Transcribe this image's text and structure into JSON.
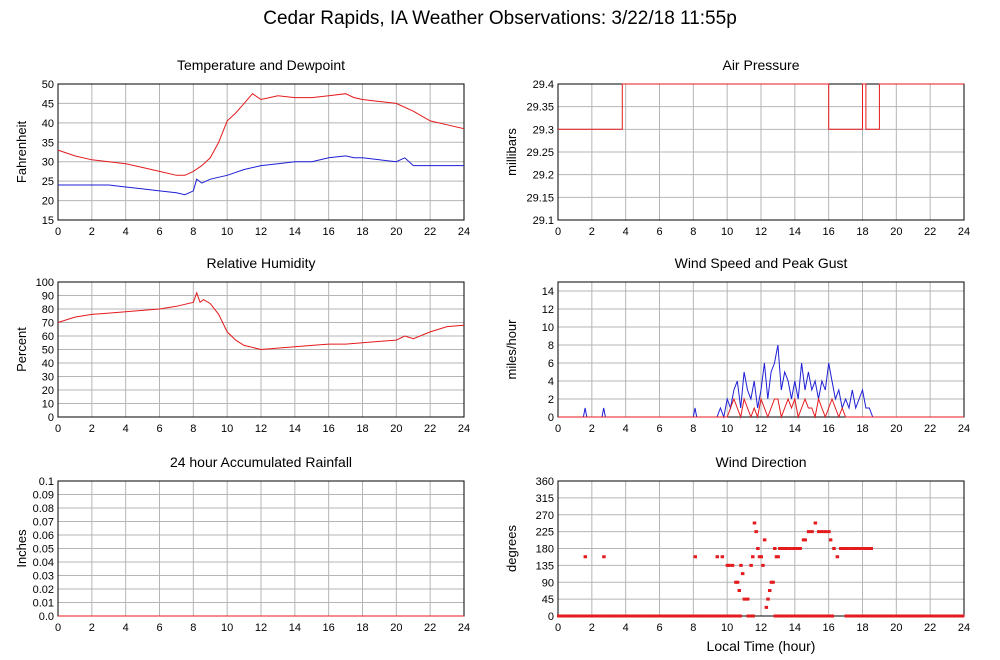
{
  "page": {
    "title": "Cedar Rapids, IA Weather Observations: 3/22/18 11:55p"
  },
  "colors": {
    "red": "#e41a1c",
    "blue": "#1f1fd6",
    "grid": "#b5b5b5",
    "axis": "#000000"
  },
  "chart_data": [
    {
      "id": "temp",
      "type": "line",
      "title": "Temperature and Dewpoint",
      "ylabel": "Fahrenheit",
      "xlabel": "",
      "xlim": [
        0,
        24
      ],
      "ylim": [
        15,
        50
      ],
      "xticks": [
        0,
        2,
        4,
        6,
        8,
        10,
        12,
        14,
        16,
        18,
        20,
        22,
        24
      ],
      "yticks": [
        15,
        20,
        25,
        30,
        35,
        40,
        45,
        50
      ],
      "series": [
        {
          "color": "red",
          "x": [
            0,
            1,
            2,
            3,
            4,
            5,
            6,
            7,
            7.5,
            8,
            8.5,
            9,
            9.5,
            10,
            10.5,
            11,
            11.5,
            12,
            12.5,
            13,
            14,
            15,
            16,
            17,
            17.5,
            18,
            19,
            20,
            21,
            22,
            23,
            24
          ],
          "y": [
            33,
            31.5,
            30.5,
            30,
            29.5,
            28.5,
            27.5,
            26.5,
            26.5,
            27.5,
            29,
            31,
            35,
            40.5,
            42.5,
            45,
            47.5,
            46,
            46.5,
            47,
            46.5,
            46.5,
            47,
            47.5,
            46.5,
            46,
            45.5,
            45,
            43,
            40.5,
            39.5,
            38.5
          ]
        },
        {
          "color": "blue",
          "x": [
            0,
            1,
            2,
            3,
            4,
            5,
            6,
            7,
            7.5,
            8,
            8.2,
            8.5,
            9,
            10,
            11,
            12,
            13,
            14,
            15,
            16,
            17,
            17.5,
            18,
            19,
            20,
            20.5,
            21,
            22,
            23,
            24
          ],
          "y": [
            24,
            24,
            24,
            24,
            23.5,
            23,
            22.5,
            22,
            21.5,
            22.5,
            25.5,
            24.5,
            25.5,
            26.5,
            28,
            29,
            29.5,
            30,
            30,
            31,
            31.5,
            31,
            31,
            30.5,
            30,
            31,
            29,
            29,
            29,
            29
          ]
        }
      ]
    },
    {
      "id": "pressure",
      "type": "line",
      "title": "Air Pressure",
      "ylabel": "millibars",
      "xlabel": "",
      "xlim": [
        0,
        24
      ],
      "ylim": [
        29.1,
        29.4
      ],
      "xticks": [
        0,
        2,
        4,
        6,
        8,
        10,
        12,
        14,
        16,
        18,
        20,
        22,
        24
      ],
      "yticks": [
        29.1,
        29.15,
        29.2,
        29.25,
        29.3,
        29.35,
        29.4
      ],
      "ytick_labels": [
        "29.1",
        "29.15",
        "29.2",
        "29.25",
        "29.3",
        "29.35",
        "29.4"
      ],
      "series": [
        {
          "color": "red",
          "x": [
            0,
            3.8,
            3.8,
            16,
            16,
            18,
            18,
            18.2,
            18.2,
            19,
            19,
            24
          ],
          "y": [
            29.3,
            29.3,
            29.4,
            29.4,
            29.3,
            29.3,
            29.4,
            29.4,
            29.3,
            29.3,
            29.4,
            29.4
          ]
        }
      ]
    },
    {
      "id": "rh",
      "type": "line",
      "title": "Relative Humidity",
      "ylabel": "Percent",
      "xlabel": "",
      "xlim": [
        0,
        24
      ],
      "ylim": [
        0,
        100
      ],
      "xticks": [
        0,
        2,
        4,
        6,
        8,
        10,
        12,
        14,
        16,
        18,
        20,
        22,
        24
      ],
      "yticks": [
        0,
        10,
        20,
        30,
        40,
        50,
        60,
        70,
        80,
        90,
        100
      ],
      "series": [
        {
          "color": "red",
          "x": [
            0,
            1,
            2,
            3,
            4,
            5,
            6,
            7,
            8,
            8.2,
            8.4,
            8.6,
            9,
            9.5,
            10,
            10.5,
            11,
            12,
            13,
            14,
            15,
            16,
            17,
            18,
            19,
            20,
            20.5,
            21,
            22,
            23,
            24
          ],
          "y": [
            70,
            74,
            76,
            77,
            78,
            79,
            80,
            82,
            85,
            92,
            85,
            87,
            84,
            76,
            63,
            57,
            53,
            50,
            51,
            52,
            53,
            54,
            54,
            55,
            56,
            57,
            60,
            58,
            63,
            67,
            68
          ]
        }
      ]
    },
    {
      "id": "wind",
      "type": "line",
      "title": "Wind Speed and Peak Gust",
      "ylabel": "miles/hour",
      "xlabel": "",
      "xlim": [
        0,
        24
      ],
      "ylim": [
        0,
        15
      ],
      "xticks": [
        0,
        2,
        4,
        6,
        8,
        10,
        12,
        14,
        16,
        18,
        20,
        22,
        24
      ],
      "yticks": [
        0,
        2,
        4,
        6,
        8,
        10,
        12,
        14
      ],
      "series": [
        {
          "color": "blue",
          "x": [
            0,
            1.5,
            1.6,
            1.7,
            2.6,
            2.7,
            2.8,
            8,
            8.1,
            8.2,
            9.4,
            9.6,
            9.8,
            10,
            10.2,
            10.4,
            10.6,
            10.8,
            11,
            11.2,
            11.4,
            11.6,
            11.8,
            12,
            12.2,
            12.4,
            12.6,
            12.8,
            13,
            13.2,
            13.4,
            13.6,
            13.8,
            14,
            14.2,
            14.4,
            14.6,
            14.8,
            15,
            15.2,
            15.4,
            15.6,
            15.8,
            16,
            16.2,
            16.4,
            16.6,
            16.8,
            17,
            17.2,
            17.4,
            17.6,
            17.8,
            18,
            18.2,
            18.4,
            18.6,
            24
          ],
          "y": [
            0,
            0,
            1,
            0,
            0,
            1,
            0,
            0,
            1,
            0,
            0,
            1,
            0,
            2,
            1,
            3,
            4,
            1,
            5,
            3,
            2,
            4,
            1,
            3,
            6,
            2,
            5,
            6,
            8,
            3,
            5,
            4,
            2,
            4,
            2,
            6,
            3,
            5,
            3,
            4,
            2,
            4,
            3,
            6,
            4,
            2,
            3,
            1,
            2,
            1,
            3,
            1,
            2,
            3,
            1,
            1,
            0,
            0
          ]
        },
        {
          "color": "red",
          "x": [
            0,
            10,
            10.2,
            10.4,
            10.6,
            10.8,
            11,
            11.2,
            11.4,
            11.6,
            11.8,
            12,
            12.2,
            12.4,
            12.6,
            12.8,
            13,
            13.2,
            13.4,
            13.6,
            13.8,
            14,
            14.2,
            14.4,
            14.6,
            14.8,
            15,
            15.2,
            15.4,
            15.6,
            15.8,
            16,
            16.2,
            16.4,
            16.6,
            16.8,
            17,
            24
          ],
          "y": [
            0,
            0,
            1,
            2,
            1,
            0,
            2,
            1,
            0,
            1,
            0,
            2,
            1,
            0,
            1,
            2,
            2,
            0,
            1,
            2,
            1,
            2,
            0,
            1,
            2,
            1,
            1,
            0,
            2,
            1,
            0,
            1,
            2,
            1,
            0,
            1,
            0,
            0
          ]
        }
      ]
    },
    {
      "id": "rain",
      "type": "line",
      "title": "24 hour Accumulated Rainfall",
      "ylabel": "Inches",
      "xlabel": "",
      "xlim": [
        0,
        24
      ],
      "ylim": [
        0,
        0.1
      ],
      "xticks": [
        0,
        2,
        4,
        6,
        8,
        10,
        12,
        14,
        16,
        18,
        20,
        22,
        24
      ],
      "yticks": [
        0,
        0.01,
        0.02,
        0.03,
        0.04,
        0.05,
        0.06,
        0.07,
        0.08,
        0.09,
        0.1
      ],
      "ytick_labels": [
        "0.0",
        "0.01",
        "0.02",
        "0.03",
        "0.04",
        "0.05",
        "0.06",
        "0.07",
        "0.08",
        "0.09",
        "0.1"
      ],
      "series": [
        {
          "color": "red",
          "x": [
            0,
            24
          ],
          "y": [
            0,
            0
          ]
        }
      ]
    },
    {
      "id": "dir",
      "type": "scatter",
      "title": "Wind Direction",
      "ylabel": "degrees",
      "xlabel": "Local Time (hour)",
      "xlim": [
        0,
        24
      ],
      "ylim": [
        0,
        360
      ],
      "xticks": [
        0,
        2,
        4,
        6,
        8,
        10,
        12,
        14,
        16,
        18,
        20,
        22,
        24
      ],
      "yticks": [
        0,
        45,
        90,
        135,
        180,
        225,
        270,
        315,
        360
      ],
      "series": [
        {
          "color": "red",
          "x": [
            1.6,
            2.7,
            8.1,
            9.4,
            9.7,
            10.0,
            10.1,
            10.3,
            10.5,
            10.6,
            10.7,
            10.8,
            10.9,
            11.0,
            11.2,
            11.4,
            11.5,
            11.6,
            11.7,
            11.8,
            11.9,
            12.0,
            12.1,
            12.2,
            12.3,
            12.4,
            12.5,
            12.6,
            12.7,
            12.8,
            12.9,
            13.0,
            13.1,
            13.3,
            13.5,
            13.7,
            13.9,
            14.1,
            14.3,
            14.5,
            14.6,
            14.8,
            15.0,
            15.2,
            15.4,
            15.6,
            15.8,
            16.0,
            16.1,
            16.3,
            16.5,
            16.7,
            16.9,
            17.1,
            17.3,
            17.5,
            17.7,
            17.9,
            18.1,
            18.3,
            18.5
          ],
          "y": [
            158,
            158,
            158,
            158,
            158,
            135,
            135,
            135,
            90,
            90,
            68,
            135,
            113,
            45,
            45,
            135,
            158,
            248,
            225,
            180,
            158,
            158,
            135,
            203,
            23,
            45,
            68,
            90,
            90,
            180,
            158,
            158,
            180,
            180,
            180,
            180,
            180,
            180,
            180,
            203,
            203,
            225,
            225,
            248,
            225,
            225,
            225,
            225,
            203,
            180,
            158,
            180,
            180,
            180,
            180,
            180,
            180,
            180,
            180,
            180,
            180
          ],
          "zero_bands": [
            [
              0,
              10.8
            ],
            [
              11.2,
              11.6
            ],
            [
              12.8,
              16.3
            ],
            [
              17.0,
              24
            ]
          ]
        }
      ]
    }
  ]
}
